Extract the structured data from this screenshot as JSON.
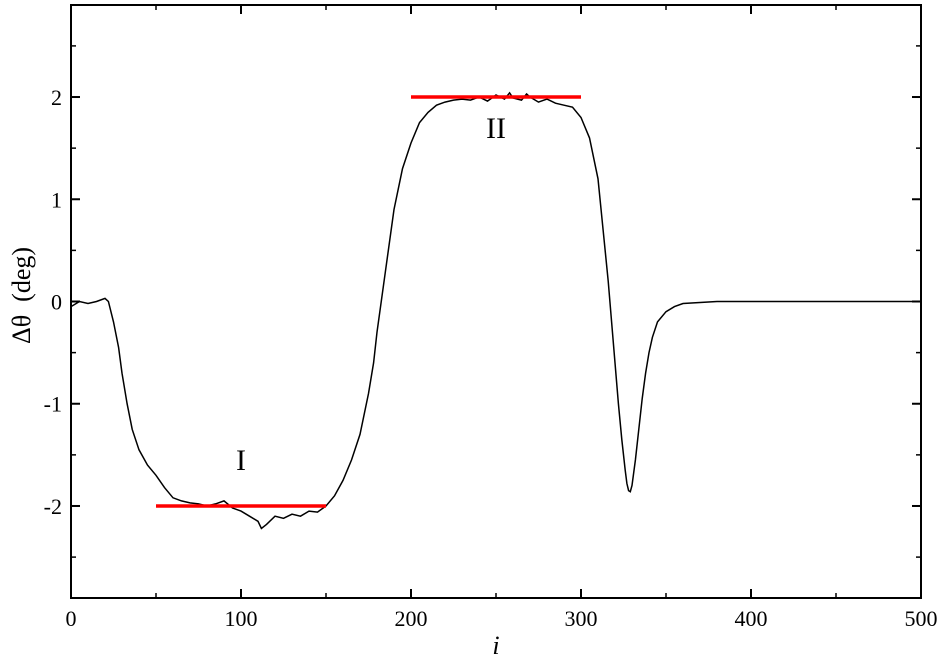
{
  "chart_data": {
    "type": "line",
    "xlabel": "i",
    "ylabel": "Δθ  (deg)",
    "xlim": [
      0,
      500
    ],
    "ylim": [
      -2.9,
      2.9
    ],
    "x_ticks": [
      0,
      100,
      200,
      300,
      400,
      500
    ],
    "x_tick_labels": [
      "0",
      "100",
      "200",
      "300",
      "400",
      "500"
    ],
    "y_ticks": [
      -2,
      -1,
      0,
      1,
      2
    ],
    "y_tick_labels": [
      "-2",
      "-1",
      "0",
      "1",
      "2"
    ],
    "grid": false,
    "series": [
      {
        "color": "#000000",
        "x": [
          0,
          5,
          10,
          15,
          20,
          22,
          25,
          28,
          30,
          33,
          36,
          40,
          45,
          50,
          55,
          60,
          65,
          70,
          75,
          80,
          85,
          90,
          95,
          100,
          105,
          110,
          112,
          115,
          120,
          125,
          130,
          135,
          140,
          145,
          150,
          155,
          160,
          165,
          170,
          175,
          178,
          180,
          185,
          190,
          195,
          200,
          205,
          210,
          215,
          220,
          225,
          230,
          235,
          240,
          245,
          250,
          255,
          258,
          260,
          265,
          268,
          270,
          275,
          280,
          285,
          290,
          295,
          300,
          305,
          310,
          313,
          316,
          318,
          320,
          322,
          324,
          326,
          327,
          328,
          329,
          330,
          332,
          334,
          336,
          338,
          340,
          342,
          345,
          350,
          355,
          360,
          370,
          380,
          400,
          450,
          500
        ],
        "y": [
          -0.05,
          0.0,
          -0.02,
          0.0,
          0.03,
          0.0,
          -0.2,
          -0.45,
          -0.7,
          -1.0,
          -1.25,
          -1.45,
          -1.6,
          -1.7,
          -1.82,
          -1.92,
          -1.95,
          -1.97,
          -1.98,
          -2.0,
          -1.98,
          -1.95,
          -2.02,
          -2.05,
          -2.1,
          -2.15,
          -2.22,
          -2.18,
          -2.1,
          -2.12,
          -2.08,
          -2.1,
          -2.05,
          -2.06,
          -2.0,
          -1.9,
          -1.75,
          -1.55,
          -1.3,
          -0.9,
          -0.6,
          -0.3,
          0.3,
          0.9,
          1.3,
          1.55,
          1.75,
          1.85,
          1.92,
          1.95,
          1.97,
          1.98,
          1.97,
          2.0,
          1.96,
          2.02,
          1.98,
          2.04,
          1.99,
          1.97,
          2.03,
          2.0,
          1.95,
          1.98,
          1.94,
          1.92,
          1.9,
          1.8,
          1.6,
          1.2,
          0.7,
          0.2,
          -0.2,
          -0.6,
          -1.0,
          -1.35,
          -1.65,
          -1.78,
          -1.85,
          -1.86,
          -1.8,
          -1.55,
          -1.25,
          -0.95,
          -0.7,
          -0.5,
          -0.35,
          -0.2,
          -0.1,
          -0.05,
          -0.02,
          -0.01,
          0.0,
          0.0,
          0.0,
          0.0
        ]
      }
    ],
    "reference_lines": [
      {
        "color": "#ff0000",
        "x": [
          50,
          150
        ],
        "y": [
          -2,
          -2
        ]
      },
      {
        "color": "#ff0000",
        "x": [
          200,
          300
        ],
        "y": [
          2,
          2
        ]
      }
    ],
    "annotations": [
      {
        "text": "I",
        "x": 100,
        "y": -1.65
      },
      {
        "text": "II",
        "x": 250,
        "y": 1.6
      }
    ]
  }
}
